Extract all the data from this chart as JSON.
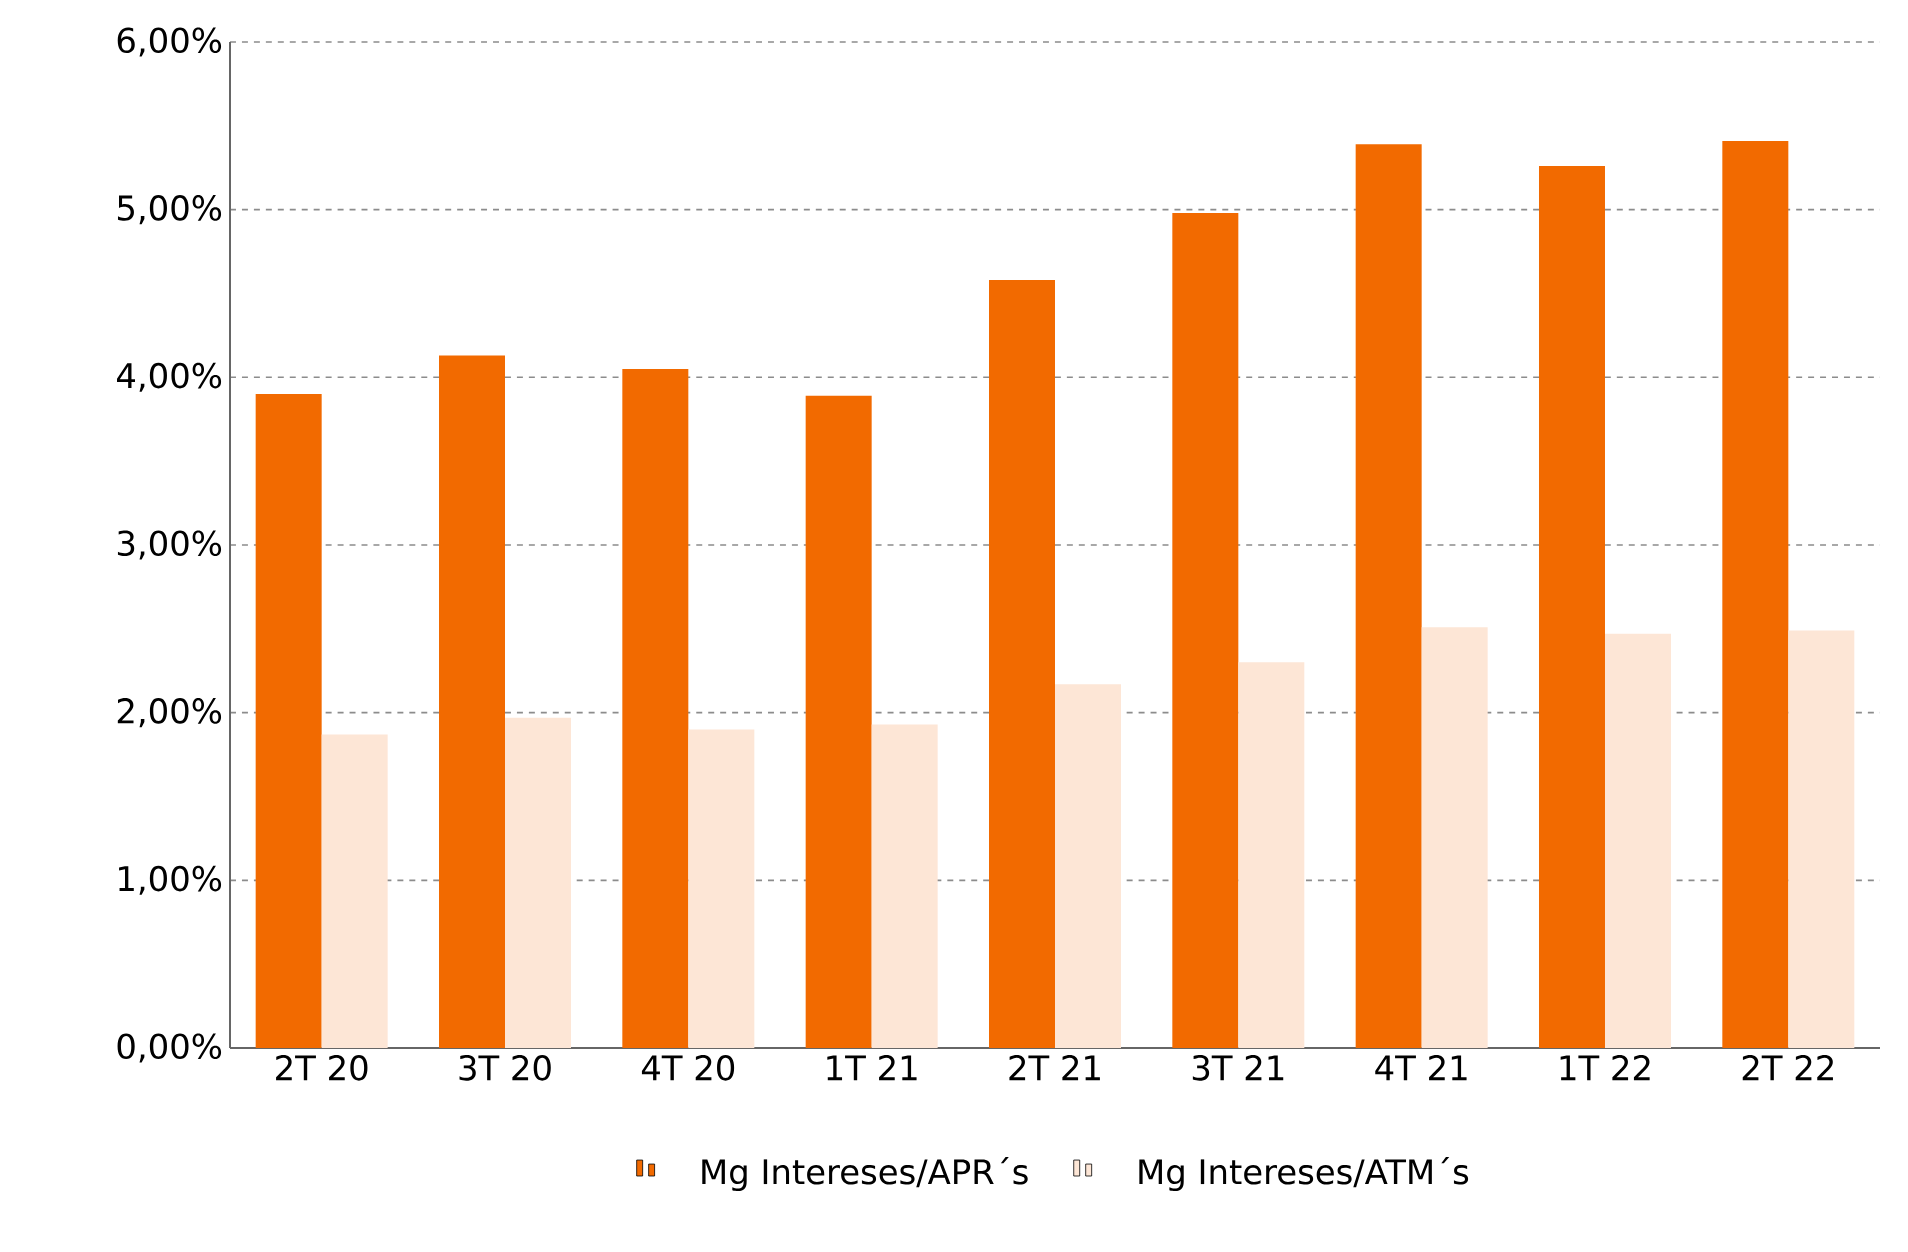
{
  "chart_data": {
    "type": "bar",
    "categories": [
      "2T 20",
      "3T 20",
      "4T 20",
      "1T 21",
      "2T 21",
      "3T 21",
      "4T 21",
      "1T 22",
      "2T 22"
    ],
    "series": [
      {
        "name": "Mg Intereses/APR´s",
        "color": "#f26a00",
        "values": [
          3.9,
          4.13,
          4.05,
          3.89,
          4.58,
          4.98,
          5.39,
          5.26,
          5.41
        ]
      },
      {
        "name": "Mg Intereses/ATM´s",
        "color": "#fde6d6",
        "values": [
          1.87,
          1.97,
          1.9,
          1.93,
          2.17,
          2.3,
          2.51,
          2.47,
          2.49
        ]
      }
    ],
    "ylim": [
      0,
      6
    ],
    "yticks": [
      {
        "value": 0,
        "label": "0,00%"
      },
      {
        "value": 1,
        "label": "1,00%"
      },
      {
        "value": 2,
        "label": "2,00%"
      },
      {
        "value": 3,
        "label": "3,00%"
      },
      {
        "value": 4,
        "label": "4,00%"
      },
      {
        "value": 5,
        "label": "5,00%"
      },
      {
        "value": 6,
        "label": "6,00%"
      }
    ],
    "grid": "y",
    "legend": "bottom"
  }
}
